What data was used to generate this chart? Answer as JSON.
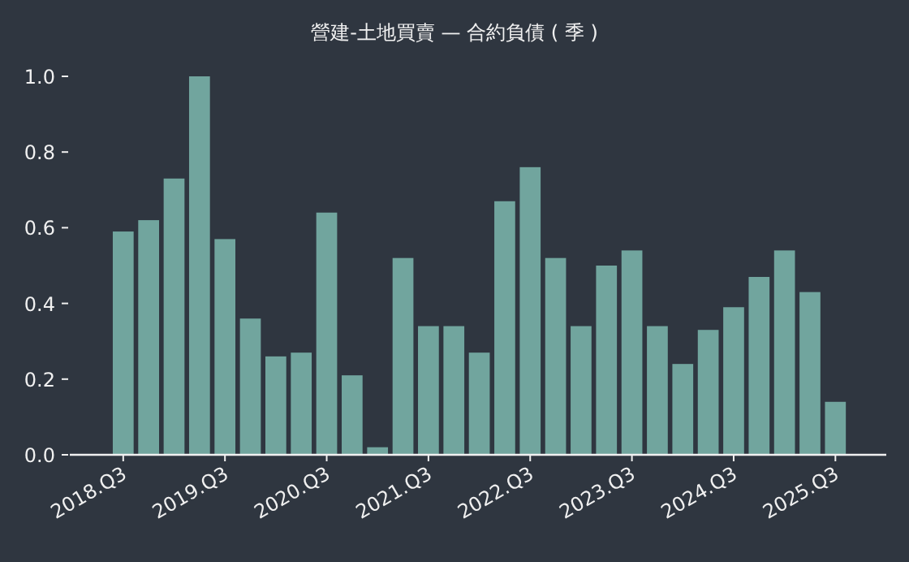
{
  "chart_data": {
    "type": "bar",
    "title": "營建-土地買賣 — 合約負債 ( 季 )",
    "categories": [
      "2018.Q3",
      null,
      null,
      null,
      "2019.Q3",
      null,
      null,
      null,
      "2020.Q3",
      null,
      null,
      null,
      "2021.Q3",
      null,
      null,
      null,
      "2022.Q3",
      null,
      null,
      null,
      "2023.Q3",
      null,
      null,
      null,
      "2024.Q3",
      null,
      null,
      null,
      "2025.Q3"
    ],
    "values": [
      0.59,
      0.62,
      0.73,
      1.0,
      0.57,
      0.36,
      0.26,
      0.27,
      0.64,
      0.21,
      0.02,
      0.52,
      0.34,
      0.34,
      0.27,
      0.67,
      0.76,
      0.52,
      0.34,
      0.5,
      0.54,
      0.34,
      0.24,
      0.33,
      0.39,
      0.47,
      0.54,
      0.43,
      0.14
    ],
    "color": "#71a59e",
    "ylim": [
      0,
      1.0
    ],
    "yticks": [
      {
        "value": 0,
        "label": "0.0"
      },
      {
        "value": 0.2,
        "label": "0.2"
      },
      {
        "value": 0.4,
        "label": "0.4"
      },
      {
        "value": 0.6,
        "label": "0.6"
      },
      {
        "value": 0.8,
        "label": "0.8"
      },
      {
        "value": 1,
        "label": "1.0"
      }
    ]
  }
}
